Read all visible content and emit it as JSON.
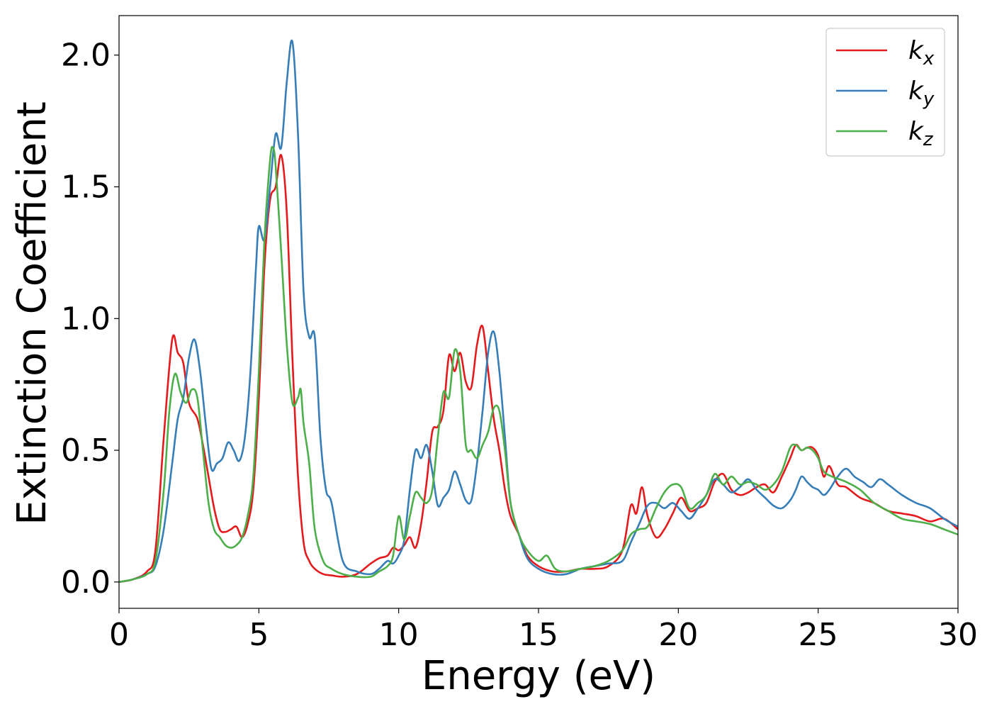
{
  "chart_data": {
    "type": "line",
    "xlabel": "Energy (eV)",
    "ylabel": "Extinction Coefficient",
    "xlim": [
      0,
      30
    ],
    "ylim": [
      -0.1,
      2.15
    ],
    "xticks": [
      0,
      5,
      10,
      15,
      20,
      25,
      30
    ],
    "xtick_labels": [
      "0",
      "5",
      "10",
      "15",
      "20",
      "25",
      "30"
    ],
    "yticks": [
      0.0,
      0.5,
      1.0,
      1.5,
      2.0
    ],
    "ytick_labels": [
      "0.0",
      "0.5",
      "1.0",
      "1.5",
      "2.0"
    ],
    "grid": false,
    "legend_position": "top-right",
    "series": [
      {
        "name": "k",
        "subscript": "x",
        "color": "#e41a1c",
        "x": [
          0,
          0.5,
          1,
          1.3,
          1.6,
          1.9,
          2.1,
          2.3,
          2.5,
          2.8,
          3.0,
          3.2,
          3.4,
          3.6,
          3.8,
          4.0,
          4.2,
          4.4,
          4.6,
          4.8,
          5.0,
          5.2,
          5.4,
          5.6,
          5.8,
          6.0,
          6.2,
          6.4,
          6.6,
          6.8,
          7.0,
          7.3,
          7.6,
          8.0,
          8.5,
          9.0,
          9.3,
          9.6,
          9.8,
          10.0,
          10.2,
          10.4,
          10.6,
          10.8,
          11.0,
          11.2,
          11.4,
          11.6,
          11.8,
          12.0,
          12.2,
          12.4,
          12.6,
          12.8,
          13.0,
          13.2,
          13.4,
          13.6,
          13.8,
          14.0,
          14.3,
          14.6,
          15.0,
          15.5,
          16.0,
          16.5,
          17.0,
          17.5,
          18.0,
          18.3,
          18.5,
          18.7,
          18.9,
          19.2,
          19.5,
          19.8,
          20.1,
          20.4,
          20.7,
          21.0,
          21.3,
          21.6,
          21.9,
          22.2,
          22.5,
          22.8,
          23.1,
          23.4,
          23.7,
          24.0,
          24.2,
          24.4,
          24.6,
          24.8,
          25.0,
          25.2,
          25.4,
          25.7,
          26.0,
          26.5,
          27.0,
          27.5,
          28.0,
          28.5,
          29.0,
          29.5,
          30.0
        ],
        "values": [
          0.0,
          0.01,
          0.04,
          0.12,
          0.55,
          0.92,
          0.87,
          0.83,
          0.68,
          0.62,
          0.52,
          0.4,
          0.28,
          0.2,
          0.19,
          0.2,
          0.21,
          0.17,
          0.22,
          0.35,
          0.7,
          1.2,
          1.45,
          1.5,
          1.62,
          1.4,
          0.85,
          0.4,
          0.15,
          0.08,
          0.05,
          0.03,
          0.025,
          0.02,
          0.03,
          0.07,
          0.09,
          0.1,
          0.13,
          0.12,
          0.14,
          0.17,
          0.13,
          0.22,
          0.38,
          0.57,
          0.59,
          0.65,
          0.86,
          0.8,
          0.87,
          0.76,
          0.74,
          0.9,
          0.97,
          0.8,
          0.62,
          0.5,
          0.35,
          0.25,
          0.18,
          0.1,
          0.06,
          0.04,
          0.04,
          0.05,
          0.05,
          0.06,
          0.12,
          0.29,
          0.26,
          0.36,
          0.25,
          0.17,
          0.2,
          0.26,
          0.32,
          0.27,
          0.28,
          0.3,
          0.38,
          0.41,
          0.35,
          0.33,
          0.34,
          0.36,
          0.37,
          0.34,
          0.4,
          0.47,
          0.52,
          0.5,
          0.51,
          0.51,
          0.48,
          0.4,
          0.44,
          0.37,
          0.36,
          0.32,
          0.3,
          0.27,
          0.26,
          0.25,
          0.23,
          0.24,
          0.2
        ]
      },
      {
        "name": "k",
        "subscript": "y",
        "color": "#377eb8",
        "x": [
          0,
          0.5,
          1,
          1.3,
          1.6,
          1.9,
          2.1,
          2.3,
          2.5,
          2.7,
          2.9,
          3.1,
          3.3,
          3.5,
          3.7,
          3.9,
          4.1,
          4.3,
          4.5,
          4.7,
          4.9,
          5.0,
          5.2,
          5.4,
          5.6,
          5.8,
          6.0,
          6.2,
          6.4,
          6.6,
          6.8,
          7.0,
          7.2,
          7.4,
          7.6,
          8.0,
          8.5,
          9.0,
          9.3,
          9.6,
          9.8,
          10.0,
          10.2,
          10.4,
          10.6,
          10.8,
          11.0,
          11.2,
          11.4,
          11.6,
          11.8,
          12.0,
          12.2,
          12.4,
          12.6,
          12.8,
          13.0,
          13.2,
          13.4,
          13.6,
          13.8,
          14.0,
          14.3,
          14.6,
          15.0,
          15.5,
          16.0,
          16.5,
          17.0,
          17.5,
          18.0,
          18.3,
          18.6,
          18.9,
          19.2,
          19.5,
          19.8,
          20.1,
          20.4,
          20.7,
          21.0,
          21.3,
          21.6,
          21.9,
          22.2,
          22.5,
          22.8,
          23.1,
          23.4,
          23.7,
          24.0,
          24.2,
          24.4,
          24.6,
          24.8,
          25.0,
          25.2,
          25.4,
          25.7,
          26.0,
          26.3,
          26.6,
          26.9,
          27.2,
          27.5,
          28.0,
          28.5,
          29.0,
          29.5,
          30.0
        ],
        "values": [
          0.0,
          0.01,
          0.03,
          0.06,
          0.2,
          0.45,
          0.62,
          0.7,
          0.85,
          0.92,
          0.8,
          0.6,
          0.43,
          0.45,
          0.47,
          0.53,
          0.5,
          0.46,
          0.55,
          0.8,
          1.2,
          1.35,
          1.3,
          1.5,
          1.7,
          1.65,
          1.9,
          2.05,
          1.7,
          1.1,
          0.93,
          0.93,
          0.55,
          0.35,
          0.3,
          0.08,
          0.04,
          0.03,
          0.05,
          0.08,
          0.07,
          0.1,
          0.16,
          0.35,
          0.5,
          0.47,
          0.52,
          0.42,
          0.29,
          0.32,
          0.35,
          0.42,
          0.37,
          0.31,
          0.31,
          0.45,
          0.65,
          0.87,
          0.95,
          0.8,
          0.55,
          0.3,
          0.18,
          0.09,
          0.05,
          0.03,
          0.03,
          0.05,
          0.06,
          0.07,
          0.08,
          0.15,
          0.22,
          0.29,
          0.3,
          0.28,
          0.3,
          0.27,
          0.24,
          0.28,
          0.33,
          0.39,
          0.37,
          0.34,
          0.36,
          0.39,
          0.35,
          0.32,
          0.29,
          0.28,
          0.31,
          0.35,
          0.4,
          0.38,
          0.36,
          0.35,
          0.33,
          0.35,
          0.4,
          0.43,
          0.4,
          0.38,
          0.36,
          0.39,
          0.37,
          0.33,
          0.3,
          0.28,
          0.24,
          0.21
        ]
      },
      {
        "name": "k",
        "subscript": "z",
        "color": "#4daf4a",
        "x": [
          0,
          0.5,
          1,
          1.3,
          1.6,
          1.8,
          2.0,
          2.2,
          2.4,
          2.6,
          2.8,
          3.0,
          3.2,
          3.4,
          3.6,
          3.8,
          4.0,
          4.2,
          4.4,
          4.6,
          4.8,
          5.0,
          5.2,
          5.4,
          5.5,
          5.6,
          5.8,
          6.0,
          6.2,
          6.4,
          6.5,
          6.6,
          6.8,
          7.0,
          7.3,
          7.6,
          8.0,
          8.5,
          9.0,
          9.3,
          9.6,
          9.8,
          10.0,
          10.2,
          10.4,
          10.6,
          10.8,
          11.0,
          11.2,
          11.4,
          11.6,
          11.8,
          12.0,
          12.2,
          12.4,
          12.6,
          12.8,
          13.0,
          13.2,
          13.4,
          13.6,
          13.8,
          14.0,
          14.3,
          14.6,
          15.0,
          15.3,
          15.6,
          16.0,
          16.5,
          17.0,
          17.5,
          18.0,
          18.3,
          18.6,
          18.9,
          19.2,
          19.5,
          19.8,
          20.1,
          20.4,
          20.7,
          21.0,
          21.3,
          21.6,
          21.9,
          22.2,
          22.5,
          22.8,
          23.1,
          23.4,
          23.7,
          24.0,
          24.2,
          24.4,
          24.6,
          24.8,
          25.0,
          25.2,
          25.5,
          26.0,
          26.5,
          27.0,
          27.5,
          28.0,
          28.5,
          29.0,
          29.5,
          30.0
        ],
        "values": [
          0.0,
          0.01,
          0.03,
          0.08,
          0.35,
          0.65,
          0.79,
          0.72,
          0.68,
          0.73,
          0.7,
          0.5,
          0.3,
          0.2,
          0.17,
          0.14,
          0.13,
          0.14,
          0.17,
          0.25,
          0.4,
          0.8,
          1.3,
          1.6,
          1.65,
          1.58,
          1.25,
          0.9,
          0.68,
          0.7,
          0.73,
          0.6,
          0.45,
          0.2,
          0.08,
          0.05,
          0.03,
          0.02,
          0.02,
          0.04,
          0.06,
          0.1,
          0.25,
          0.16,
          0.25,
          0.34,
          0.32,
          0.3,
          0.35,
          0.55,
          0.72,
          0.7,
          0.88,
          0.8,
          0.52,
          0.5,
          0.47,
          0.52,
          0.57,
          0.66,
          0.65,
          0.5,
          0.3,
          0.18,
          0.12,
          0.08,
          0.1,
          0.05,
          0.04,
          0.05,
          0.06,
          0.08,
          0.12,
          0.18,
          0.2,
          0.21,
          0.28,
          0.34,
          0.37,
          0.36,
          0.28,
          0.3,
          0.33,
          0.41,
          0.37,
          0.4,
          0.37,
          0.38,
          0.37,
          0.35,
          0.37,
          0.42,
          0.51,
          0.52,
          0.5,
          0.51,
          0.5,
          0.47,
          0.42,
          0.4,
          0.38,
          0.35,
          0.3,
          0.27,
          0.24,
          0.23,
          0.22,
          0.2,
          0.18
        ]
      }
    ]
  }
}
